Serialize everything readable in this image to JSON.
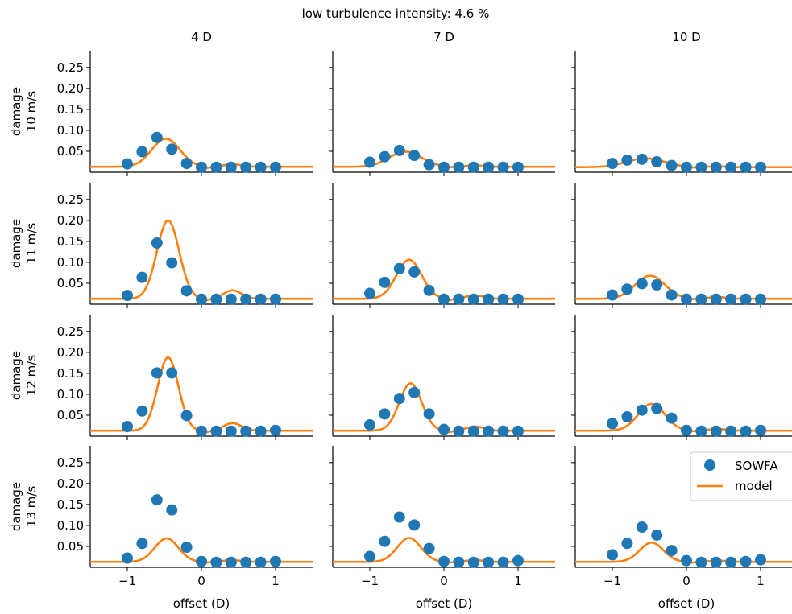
{
  "figure": {
    "suptitle": "low turbulence intensity: 4.6 %",
    "col_titles": [
      "4 D",
      "7 D",
      "10 D"
    ],
    "row_labels": [
      "damage\n10 m/s",
      "damage\n11 m/s",
      "damage\n12 m/s",
      "damage\n13 m/s"
    ],
    "xlabel": "offset (D)",
    "legend": {
      "placement": "upper-right of bottom-right panel",
      "entries": [
        "SOWFA",
        "model"
      ]
    },
    "colors": {
      "sowfa": "#1f77b4",
      "model": "#ff7f0e"
    }
  },
  "chart_data": {
    "type": "scatter",
    "layout": "grid 4 rows x 3 columns, shared axes",
    "xlim": [
      -1.5,
      1.5
    ],
    "ylim": [
      0.0,
      0.29
    ],
    "xticks": [
      -1,
      0,
      1
    ],
    "xtick_labels": [
      "−1",
      "0",
      "1"
    ],
    "yticks": [
      0.05,
      0.1,
      0.15,
      0.2,
      0.25
    ],
    "ytick_labels": [
      "0.05",
      "0.10",
      "0.15",
      "0.20",
      "0.25"
    ],
    "sowfa_x": [
      -1.0,
      -0.8,
      -0.6,
      -0.4,
      -0.2,
      0.0,
      0.2,
      0.4,
      0.6,
      0.8,
      1.0
    ],
    "series": [
      {
        "name": "SOWFA",
        "kind": "markers",
        "panels": [
          [
            [
              0.02,
              0.049,
              0.083,
              0.055,
              0.021,
              0.012,
              0.012,
              0.012,
              0.012,
              0.012,
              0.012
            ],
            [
              0.024,
              0.037,
              0.052,
              0.04,
              0.018,
              0.012,
              0.012,
              0.012,
              0.012,
              0.012,
              0.012
            ],
            [
              0.021,
              0.029,
              0.031,
              0.025,
              0.016,
              0.012,
              0.012,
              0.012,
              0.012,
              0.012,
              0.012
            ]
          ],
          [
            [
              0.021,
              0.064,
              0.146,
              0.099,
              0.032,
              0.012,
              0.012,
              0.012,
              0.012,
              0.012,
              0.012
            ],
            [
              0.026,
              0.052,
              0.085,
              0.077,
              0.033,
              0.012,
              0.012,
              0.012,
              0.012,
              0.012,
              0.012
            ],
            [
              0.022,
              0.036,
              0.049,
              0.046,
              0.022,
              0.012,
              0.012,
              0.012,
              0.012,
              0.012,
              0.012
            ]
          ],
          [
            [
              0.023,
              0.06,
              0.151,
              0.151,
              0.049,
              0.012,
              0.012,
              0.012,
              0.012,
              0.012,
              0.014
            ],
            [
              0.027,
              0.053,
              0.09,
              0.104,
              0.053,
              0.016,
              0.012,
              0.012,
              0.012,
              0.012,
              0.012
            ],
            [
              0.03,
              0.046,
              0.062,
              0.066,
              0.043,
              0.014,
              0.012,
              0.012,
              0.012,
              0.012,
              0.014
            ]
          ],
          [
            [
              0.022,
              0.057,
              0.161,
              0.137,
              0.048,
              0.014,
              0.012,
              0.012,
              0.012,
              0.012,
              0.014
            ],
            [
              0.026,
              0.062,
              0.12,
              0.101,
              0.045,
              0.014,
              0.012,
              0.012,
              0.012,
              0.012,
              0.016
            ],
            [
              0.03,
              0.057,
              0.096,
              0.077,
              0.04,
              0.016,
              0.012,
              0.012,
              0.012,
              0.014,
              0.018
            ]
          ]
        ]
      },
      {
        "name": "model",
        "kind": "line",
        "panels": [
          [
            {
              "base": 0.013,
              "peak_x": -0.48,
              "peak_y": 0.08,
              "width": 0.19,
              "bump_y": 0.006
            },
            {
              "base": 0.013,
              "peak_x": -0.52,
              "peak_y": 0.049,
              "width": 0.22,
              "bump_y": 0.003
            },
            {
              "base": 0.012,
              "peak_x": -0.55,
              "peak_y": 0.033,
              "width": 0.26,
              "bump_y": 0.002
            }
          ],
          [
            {
              "base": 0.013,
              "peak_x": -0.45,
              "peak_y": 0.2,
              "width": 0.15,
              "bump_y": 0.02
            },
            {
              "base": 0.013,
              "peak_x": -0.47,
              "peak_y": 0.106,
              "width": 0.17,
              "bump_y": 0.008
            },
            {
              "base": 0.013,
              "peak_x": -0.49,
              "peak_y": 0.068,
              "width": 0.2,
              "bump_y": 0.004
            }
          ],
          [
            {
              "base": 0.013,
              "peak_x": -0.45,
              "peak_y": 0.188,
              "width": 0.14,
              "bump_y": 0.018
            },
            {
              "base": 0.013,
              "peak_x": -0.45,
              "peak_y": 0.126,
              "width": 0.15,
              "bump_y": 0.01
            },
            {
              "base": 0.013,
              "peak_x": -0.47,
              "peak_y": 0.077,
              "width": 0.18,
              "bump_y": 0.004
            }
          ],
          [
            {
              "base": 0.013,
              "peak_x": -0.47,
              "peak_y": 0.069,
              "width": 0.16,
              "bump_y": 0.004
            },
            {
              "base": 0.013,
              "peak_x": -0.47,
              "peak_y": 0.07,
              "width": 0.16,
              "bump_y": 0.004
            },
            {
              "base": 0.013,
              "peak_x": -0.47,
              "peak_y": 0.059,
              "width": 0.16,
              "bump_y": 0.003
            }
          ]
        ]
      }
    ],
    "grid": false
  }
}
